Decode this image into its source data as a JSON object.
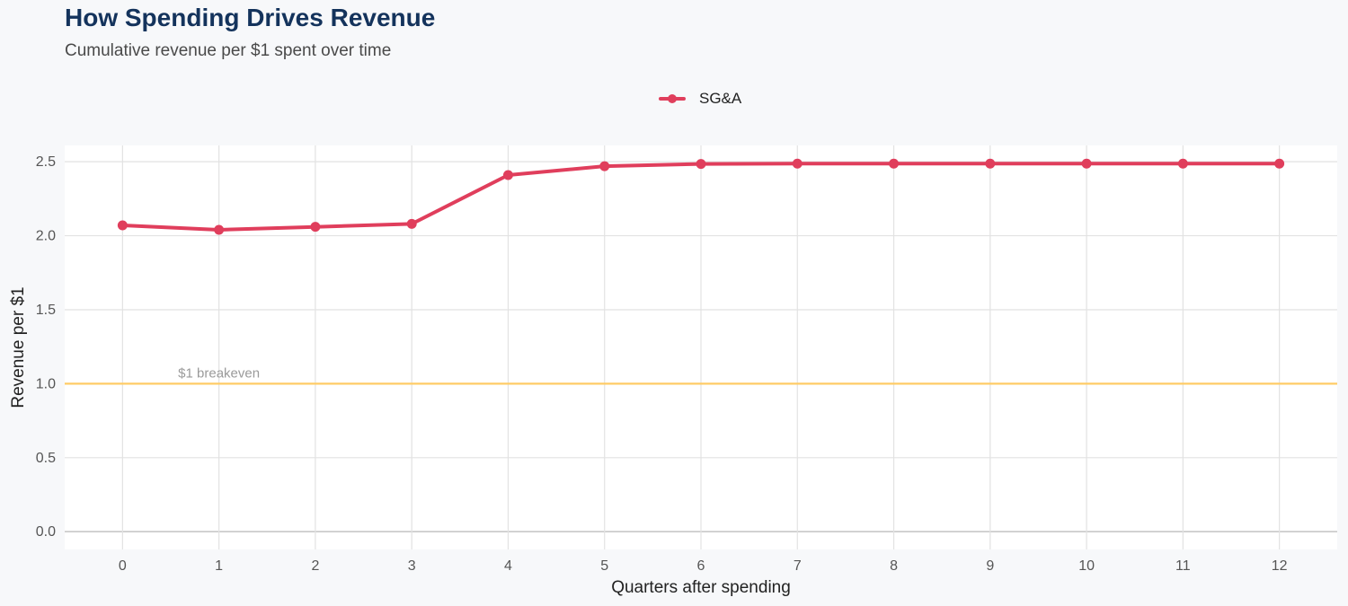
{
  "title": "How Spending Drives Revenue",
  "subtitle": "Cumulative revenue per $1 spent over time",
  "colors": {
    "series": "#e03e5c",
    "breakeven": "#ffcc66",
    "grid": "#e2e2e2",
    "baseline": "#c8c8c8",
    "panel": "#ffffff"
  },
  "chart_data": {
    "type": "line",
    "xlabel": "Quarters after spending",
    "ylabel": "Revenue per $1",
    "x": [
      0,
      1,
      2,
      3,
      4,
      5,
      6,
      7,
      8,
      9,
      10,
      11,
      12
    ],
    "xlim": [
      -0.6,
      12.6
    ],
    "ylim": [
      -0.12,
      2.61
    ],
    "yticks": [
      0.0,
      0.5,
      1.0,
      1.5,
      2.0,
      2.5
    ],
    "ytick_labels": [
      "0.0",
      "0.5",
      "1.0",
      "1.5",
      "2.0",
      "2.5"
    ],
    "xtick_labels": [
      "0",
      "1",
      "2",
      "3",
      "4",
      "5",
      "6",
      "7",
      "8",
      "9",
      "10",
      "11",
      "12"
    ],
    "grid": true,
    "legend_position": "top-center",
    "series": [
      {
        "name": "SG&A",
        "values": [
          2.07,
          2.04,
          2.06,
          2.08,
          2.41,
          2.47,
          2.485,
          2.487,
          2.487,
          2.487,
          2.487,
          2.487,
          2.487
        ]
      }
    ],
    "reference_lines": [
      {
        "y": 1.0,
        "label": "$1 breakeven",
        "label_x": 1.0
      }
    ]
  }
}
